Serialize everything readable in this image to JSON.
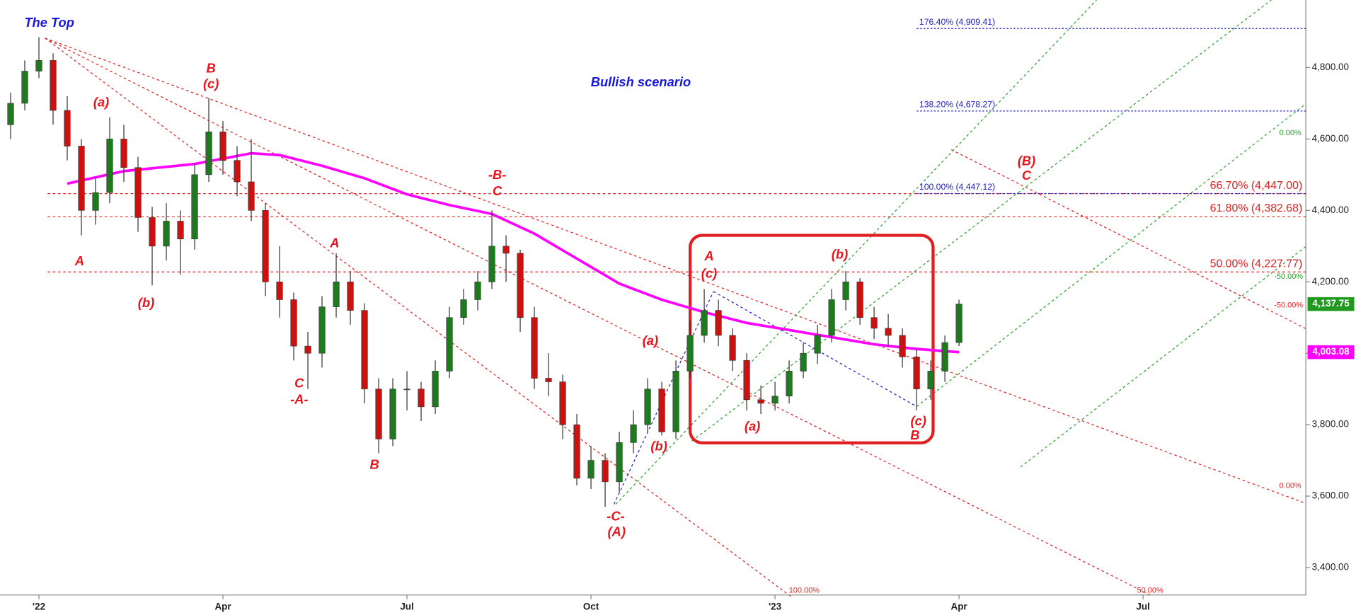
{
  "chart_data": {
    "type": "candlestick",
    "x": [
      -2,
      -1,
      0,
      1,
      2,
      3,
      4,
      5,
      6,
      7,
      8,
      9,
      10,
      11,
      12,
      13,
      14,
      15,
      16,
      17,
      18,
      19,
      20,
      21,
      22,
      23,
      24,
      25,
      26,
      27,
      28,
      29,
      30,
      31,
      32,
      33,
      34,
      35,
      36,
      37,
      38,
      39,
      40,
      41,
      42,
      43,
      44,
      45,
      46,
      47,
      48,
      49,
      50,
      51,
      52,
      53,
      54,
      55,
      56,
      57,
      58,
      59,
      60,
      61,
      62,
      63,
      64,
      65
    ],
    "ohlc": [
      [
        4640,
        4730,
        4600,
        4700
      ],
      [
        4700,
        4820,
        4680,
        4790
      ],
      [
        4790,
        4885,
        4770,
        4820
      ],
      [
        4820,
        4840,
        4640,
        4680
      ],
      [
        4680,
        4720,
        4540,
        4580
      ],
      [
        4580,
        4600,
        4330,
        4400
      ],
      [
        4400,
        4490,
        4360,
        4450
      ],
      [
        4450,
        4660,
        4420,
        4600
      ],
      [
        4600,
        4640,
        4480,
        4520
      ],
      [
        4520,
        4550,
        4340,
        4380
      ],
      [
        4380,
        4410,
        4190,
        4300
      ],
      [
        4300,
        4420,
        4260,
        4370
      ],
      [
        4370,
        4400,
        4220,
        4320
      ],
      [
        4320,
        4530,
        4290,
        4500
      ],
      [
        4500,
        4715,
        4480,
        4620
      ],
      [
        4620,
        4650,
        4500,
        4540
      ],
      [
        4540,
        4580,
        4440,
        4480
      ],
      [
        4480,
        4600,
        4370,
        4400
      ],
      [
        4400,
        4420,
        4160,
        4200
      ],
      [
        4200,
        4300,
        4100,
        4150
      ],
      [
        4150,
        4170,
        3980,
        4020
      ],
      [
        4020,
        4060,
        3900,
        4000
      ],
      [
        4000,
        4160,
        3960,
        4130
      ],
      [
        4130,
        4280,
        4100,
        4200
      ],
      [
        4200,
        4230,
        4080,
        4120
      ],
      [
        4120,
        4140,
        3860,
        3900
      ],
      [
        3900,
        3930,
        3720,
        3760
      ],
      [
        3760,
        3930,
        3740,
        3900
      ],
      [
        3900,
        3950,
        3840,
        3900
      ],
      [
        3900,
        3920,
        3810,
        3850
      ],
      [
        3850,
        3980,
        3830,
        3950
      ],
      [
        3950,
        4130,
        3930,
        4100
      ],
      [
        4100,
        4180,
        4080,
        4150
      ],
      [
        4150,
        4230,
        4120,
        4200
      ],
      [
        4200,
        4400,
        4180,
        4300
      ],
      [
        4300,
        4330,
        4200,
        4280
      ],
      [
        4280,
        4290,
        4060,
        4100
      ],
      [
        4100,
        4130,
        3900,
        3930
      ],
      [
        3930,
        4000,
        3880,
        3920
      ],
      [
        3920,
        3940,
        3760,
        3800
      ],
      [
        3800,
        3830,
        3630,
        3650
      ],
      [
        3650,
        3740,
        3620,
        3700
      ],
      [
        3700,
        3720,
        3570,
        3640
      ],
      [
        3640,
        3780,
        3610,
        3750
      ],
      [
        3750,
        3840,
        3720,
        3800
      ],
      [
        3800,
        3930,
        3780,
        3900
      ],
      [
        3900,
        3920,
        3770,
        3780
      ],
      [
        3780,
        3980,
        3760,
        3950
      ],
      [
        3950,
        4090,
        3930,
        4050
      ],
      [
        4050,
        4180,
        4030,
        4120
      ],
      [
        4120,
        4150,
        4020,
        4050
      ],
      [
        4050,
        4070,
        3950,
        3980
      ],
      [
        3980,
        4000,
        3840,
        3870
      ],
      [
        3870,
        3910,
        3830,
        3860
      ],
      [
        3860,
        3920,
        3840,
        3880
      ],
      [
        3880,
        3980,
        3860,
        3950
      ],
      [
        3950,
        4030,
        3930,
        4000
      ],
      [
        4000,
        4080,
        3970,
        4050
      ],
      [
        4050,
        4180,
        4030,
        4150
      ],
      [
        4150,
        4230,
        4120,
        4200
      ],
      [
        4200,
        4210,
        4080,
        4100
      ],
      [
        4100,
        4130,
        4040,
        4070
      ],
      [
        4070,
        4110,
        4020,
        4050
      ],
      [
        4050,
        4070,
        3960,
        3990
      ],
      [
        3990,
        4010,
        3840,
        3900
      ],
      [
        3900,
        3980,
        3870,
        3950
      ],
      [
        3950,
        4050,
        3920,
        4030
      ],
      [
        4030,
        4150,
        4020,
        4137.75
      ]
    ],
    "up_color": "#1f7a1f",
    "down_color": "#cc1111",
    "last_label": "4,137.75",
    "last_label_color": "#1f9a1f",
    "moving_average": {
      "x": [
        2,
        6,
        11,
        15,
        17,
        20,
        23,
        26,
        29,
        32,
        35,
        38,
        41,
        44,
        47,
        50,
        53,
        56,
        59,
        62,
        65
      ],
      "values": [
        4475,
        4510,
        4530,
        4560,
        4555,
        4525,
        4490,
        4445,
        4415,
        4390,
        4335,
        4265,
        4195,
        4150,
        4115,
        4085,
        4065,
        4045,
        4025,
        4012,
        4003.08
      ],
      "color": "#ff00ff",
      "last_label": "4,003.08"
    },
    "fib_levels": [
      {
        "value": 4447.0,
        "label": "66.70% (4,447.00)",
        "color": "#e02020"
      },
      {
        "value": 4382.68,
        "label": "61.80% (4,382.68)",
        "color": "#e02020"
      },
      {
        "value": 4227.77,
        "label": "50.00% (4,227.77)",
        "color": "#e02020"
      },
      {
        "value": 4909.41,
        "label": "176.40% (4,909.41)",
        "color": "#2020cc"
      },
      {
        "value": 4678.27,
        "label": "138.20% (4,678.27)",
        "color": "#2020cc"
      },
      {
        "value": 4447.12,
        "label": "100.00% (4,447.12)",
        "color": "#2020cc"
      }
    ],
    "annotations": [
      "The Top",
      "Bullish scenario",
      "(a)",
      "B",
      "(c)",
      "A",
      "(b)",
      "-B-",
      "C",
      "A",
      "C",
      "-A-",
      "B",
      "(a)",
      "(b)",
      "-C-",
      "(A)",
      "A",
      "(c)",
      "(a)",
      "(b)",
      "(c)",
      "B",
      "(B)",
      "C",
      "100.00%",
      "50.00%",
      "0.00%",
      "-50.00%",
      "-50.00%",
      "0.00%"
    ],
    "xlim": [
      -2.75,
      89.5
    ],
    "xticks": [
      {
        "value": 0,
        "label": "'22"
      },
      {
        "value": 13,
        "label": "Apr"
      },
      {
        "value": 26,
        "label": "Jul"
      },
      {
        "value": 39,
        "label": "Oct"
      },
      {
        "value": 52,
        "label": "'23"
      },
      {
        "value": 65,
        "label": "Apr"
      },
      {
        "value": 78,
        "label": "Jul"
      }
    ],
    "ylim": [
      3323,
      4989
    ],
    "yticks": [
      {
        "value": 3400,
        "label": "3,400.00"
      },
      {
        "value": 3600,
        "label": "3,600.00"
      },
      {
        "value": 3800,
        "label": "3,800.00"
      },
      {
        "value": 4000,
        "label": "4,000.00"
      },
      {
        "value": 4200,
        "label": "4,200.00"
      },
      {
        "value": 4400,
        "label": "4,400.00"
      },
      {
        "value": 4600,
        "label": "4,600.00"
      },
      {
        "value": 4800,
        "label": "4,800.00"
      }
    ]
  }
}
